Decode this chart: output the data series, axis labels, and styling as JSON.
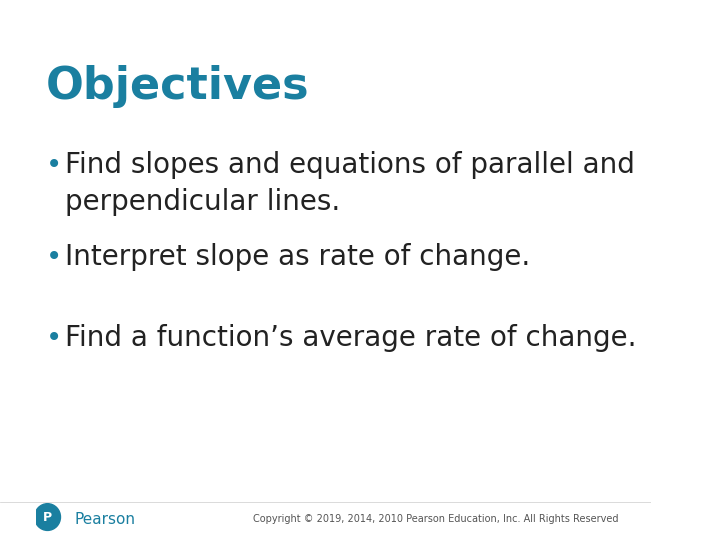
{
  "title": "Objectives",
  "title_color": "#1a7fa0",
  "title_fontsize": 32,
  "title_bold": true,
  "bullet_points": [
    "Find slopes and equations of parallel and\nperpendicular lines.",
    "Interpret slope as rate of change.",
    "Find a function’s average rate of change."
  ],
  "bullet_color": "#1a7fa0",
  "text_color": "#222222",
  "bullet_fontsize": 20,
  "background_color": "#ffffff",
  "footer_text": "Copyright © 2019, 2014, 2010 Pearson Education, Inc. All Rights Reserved",
  "footer_color": "#555555",
  "footer_fontsize": 7,
  "pearson_text": "Pearson",
  "pearson_color": "#1a7fa0",
  "pearson_fontsize": 11,
  "logo_color": "#1a7fa0"
}
